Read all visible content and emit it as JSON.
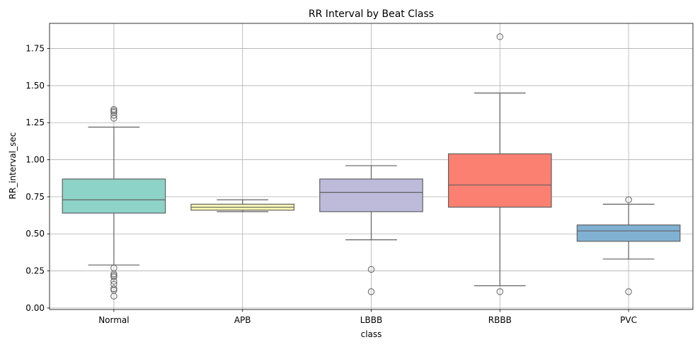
{
  "chart_data": {
    "type": "box",
    "title": "RR Interval by Beat Class",
    "xlabel": "class",
    "ylabel": "RR_interval_sec",
    "ylim": [
      -0.01,
      1.92
    ],
    "yticks": [
      "0.00",
      "0.25",
      "0.50",
      "0.75",
      "1.00",
      "1.25",
      "1.50",
      "1.75"
    ],
    "grid": true,
    "categories": [
      "Normal",
      "APB",
      "LBBB",
      "RBBB",
      "PVC"
    ],
    "colors": [
      "#8dd3c7",
      "#ffffb3",
      "#bebada",
      "#fb8072",
      "#80b1d3"
    ],
    "boxes": [
      {
        "q1": 0.64,
        "median": 0.73,
        "q3": 0.87,
        "whisker_low": 0.29,
        "whisker_high": 1.22,
        "outliers": [
          0.08,
          0.12,
          0.13,
          0.16,
          0.18,
          0.21,
          0.22,
          0.23,
          0.27,
          1.28,
          1.3,
          1.32,
          1.33,
          1.34
        ]
      },
      {
        "q1": 0.66,
        "median": 0.68,
        "q3": 0.7,
        "whisker_low": 0.65,
        "whisker_high": 0.73,
        "outliers": []
      },
      {
        "q1": 0.65,
        "median": 0.78,
        "q3": 0.87,
        "whisker_low": 0.46,
        "whisker_high": 0.96,
        "outliers": [
          0.11,
          0.26
        ]
      },
      {
        "q1": 0.68,
        "median": 0.83,
        "q3": 1.04,
        "whisker_low": 0.15,
        "whisker_high": 1.45,
        "outliers": [
          0.11,
          1.83
        ]
      },
      {
        "q1": 0.45,
        "median": 0.52,
        "q3": 0.56,
        "whisker_low": 0.33,
        "whisker_high": 0.7,
        "outliers": [
          0.11,
          0.73
        ]
      }
    ]
  }
}
